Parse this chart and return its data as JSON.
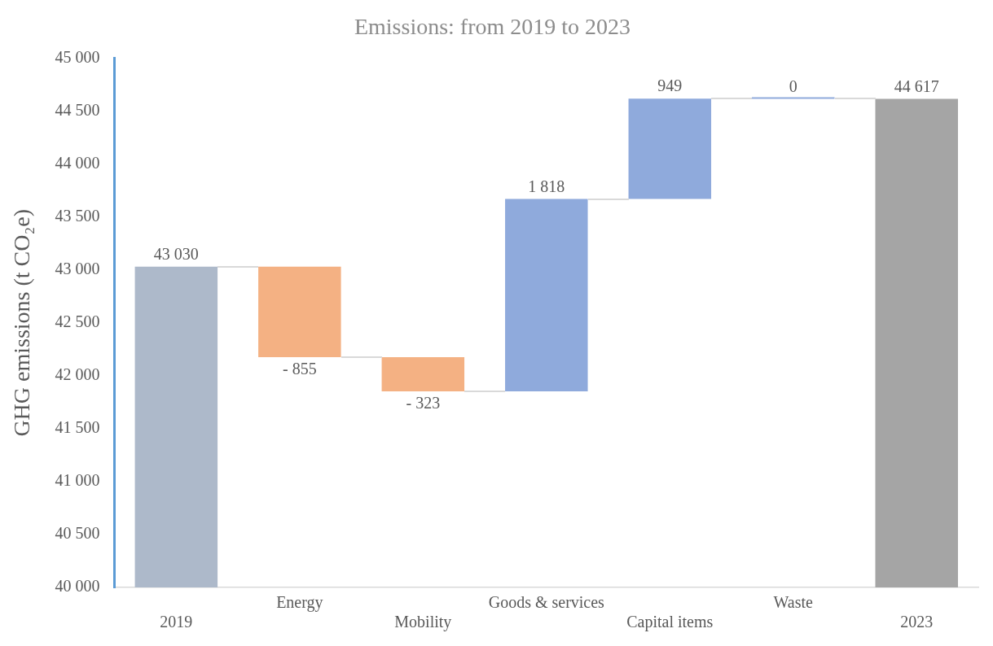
{
  "chart_data": {
    "type": "bar",
    "title": "Emissions: from 2019 to 2023",
    "ylabel": "GHG emissions (t CO₂e)",
    "categories": [
      "2019",
      "Energy",
      "Mobility",
      "Goods & services",
      "Capital items",
      "Waste",
      "2023"
    ],
    "values": [
      43030,
      -855,
      -323,
      1818,
      949,
      0,
      44617
    ],
    "base": [
      null,
      43030,
      42175,
      41852,
      43670,
      44617,
      null
    ],
    "colors": [
      "#adb9ca",
      "#f4b183",
      "#f4b183",
      "#8faadc",
      "#8faadc",
      "#8faadc",
      "#a5a5a5"
    ],
    "value_labels": [
      "43 030",
      "- 855",
      "- 323",
      "1 818",
      "949",
      "0",
      "44 617"
    ],
    "ylim": [
      40000,
      45000
    ],
    "yticks": [
      {
        "value": 40000,
        "label": "40 000"
      },
      {
        "value": 40500,
        "label": "40 500"
      },
      {
        "value": 41000,
        "label": "41 000"
      },
      {
        "value": 41500,
        "label": "41 500"
      },
      {
        "value": 42000,
        "label": "42 000"
      },
      {
        "value": 42500,
        "label": "42 500"
      },
      {
        "value": 43000,
        "label": "43 000"
      },
      {
        "value": 43500,
        "label": "43 500"
      },
      {
        "value": 44000,
        "label": "44 000"
      },
      {
        "value": 44500,
        "label": "44 500"
      },
      {
        "value": 45000,
        "label": "45 000"
      }
    ],
    "grid": false,
    "legend": false
  }
}
